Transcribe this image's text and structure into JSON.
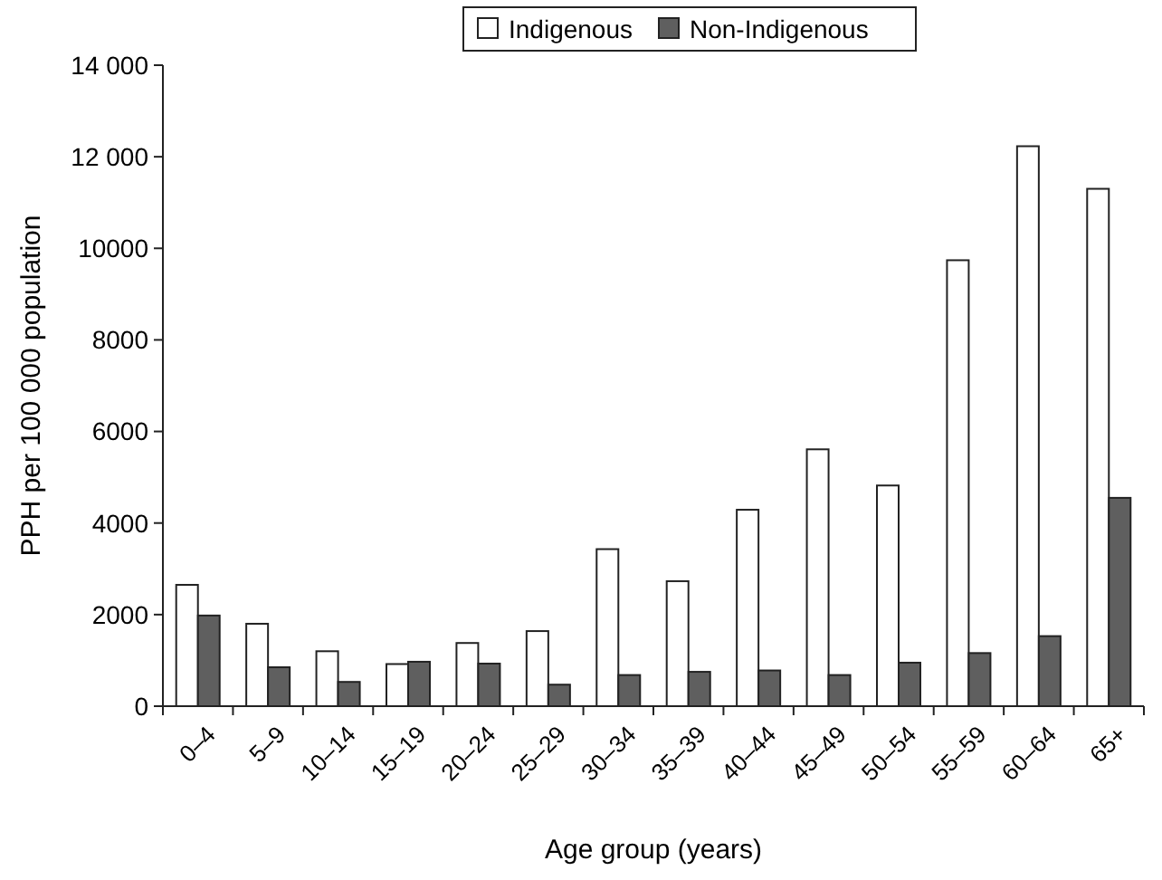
{
  "chart_data": {
    "type": "bar",
    "xlabel": "Age group (years)",
    "ylabel": "PPH per 100 000 population",
    "categories": [
      "0–4",
      "5–9",
      "10–14",
      "15–19",
      "20–24",
      "25–29",
      "30–34",
      "35–39",
      "40–44",
      "45–49",
      "50–54",
      "55–59",
      "60–64",
      "65+"
    ],
    "series": [
      {
        "name": "Indigenous",
        "color": "#ffffff",
        "values": [
          2650,
          1800,
          1200,
          920,
          1380,
          1640,
          3430,
          2730,
          4290,
          5610,
          4820,
          9740,
          12230,
          11300
        ]
      },
      {
        "name": "Non-Indigenous",
        "color": "#5f5f5f",
        "values": [
          1980,
          850,
          530,
          970,
          930,
          470,
          680,
          750,
          780,
          680,
          950,
          1160,
          1530,
          4550
        ]
      }
    ],
    "ylim": [
      0,
      14000
    ],
    "yticks": [
      0,
      2000,
      4000,
      6000,
      8000,
      10000,
      {
        "value": 12000,
        "label": "12 000"
      },
      {
        "value": 14000,
        "label": "14 000"
      }
    ],
    "grid": false,
    "legend": "top"
  }
}
